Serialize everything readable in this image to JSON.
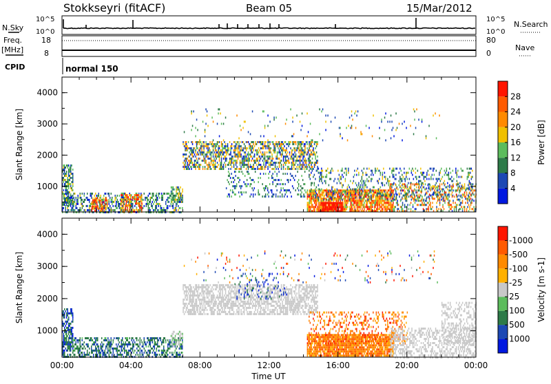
{
  "header": {
    "station": "Stokkseyri (fitACF)",
    "beam": "Beam 05",
    "date": "15/Mar/2012"
  },
  "side_labels": {
    "nsky": "N.Sky",
    "nsearch": "N.Search",
    "freq": "Freq.",
    "mhz": "[MHz]",
    "nave": "Nave",
    "cpid": "CPID"
  },
  "cpid_value": "normal 150",
  "strip_ticks": {
    "noise_top": "10^5",
    "noise_bottom": "10^0",
    "freq_top": "18",
    "freq_bottom": "8",
    "nave_top": "80",
    "nave_bottom": "0"
  },
  "chart_data": [
    {
      "type": "heatmap",
      "name": "power",
      "ylabel": "Slant Range [km]",
      "yticks": [
        "1000",
        "2000",
        "3000",
        "4000"
      ],
      "ylim": [
        180,
        4500
      ],
      "xlim": [
        0,
        24
      ],
      "colorbar_label": "Power [dB]",
      "colorbar_ticks": [
        "4",
        "8",
        "12",
        "16",
        "20",
        "24",
        "28"
      ],
      "colorbar_colors": [
        "#0018e0",
        "#1c48b4",
        "#2d7a48",
        "#5cbc5c",
        "#f0c000",
        "#ff8a00",
        "#ff5a00",
        "#ff1500"
      ],
      "regions": [
        {
          "t0": 0.0,
          "t1": 0.6,
          "r0": 400,
          "r1": 1700,
          "dens": 0.65,
          "lvl": [
            0.1,
            0.55
          ]
        },
        {
          "t0": 0.0,
          "t1": 7.0,
          "r0": 200,
          "r1": 800,
          "dens": 0.45,
          "lvl": [
            0.05,
            0.55
          ]
        },
        {
          "t0": 1.7,
          "t1": 2.6,
          "r0": 220,
          "r1": 650,
          "dens": 0.6,
          "lvl": [
            0.45,
            0.98
          ]
        },
        {
          "t0": 3.4,
          "t1": 4.6,
          "r0": 220,
          "r1": 750,
          "dens": 0.6,
          "lvl": [
            0.4,
            0.98
          ]
        },
        {
          "t0": 6.3,
          "t1": 7.0,
          "r0": 500,
          "r1": 1000,
          "dens": 0.55,
          "lvl": [
            0.2,
            0.6
          ]
        },
        {
          "t0": 7.0,
          "t1": 14.8,
          "r0": 1550,
          "r1": 2450,
          "dens": 0.55,
          "lvl": [
            0.05,
            0.75
          ]
        },
        {
          "t0": 9.5,
          "t1": 14.2,
          "r0": 700,
          "r1": 1500,
          "dens": 0.18,
          "lvl": [
            0.05,
            0.5
          ]
        },
        {
          "t0": 14.2,
          "t1": 19.2,
          "r0": 220,
          "r1": 900,
          "dens": 0.8,
          "lvl": [
            0.45,
            0.99
          ]
        },
        {
          "t0": 15.0,
          "t1": 16.3,
          "r0": 220,
          "r1": 500,
          "dens": 0.85,
          "lvl": [
            0.85,
            1.0
          ]
        },
        {
          "t0": 14.3,
          "t1": 23.8,
          "r0": 600,
          "r1": 1600,
          "dens": 0.25,
          "lvl": [
            0.05,
            0.6
          ]
        },
        {
          "t0": 19.0,
          "t1": 24.0,
          "r0": 200,
          "r1": 1100,
          "dens": 0.35,
          "lvl": [
            0.1,
            0.9
          ]
        },
        {
          "t0": 7.0,
          "t1": 22.0,
          "r0": 2500,
          "r1": 3500,
          "dens": 0.04,
          "lvl": [
            0.05,
            0.7
          ]
        }
      ]
    },
    {
      "type": "heatmap",
      "name": "velocity",
      "xlabel": "Time UT",
      "ylabel": "Slant Range [km]",
      "yticks": [
        "1000",
        "2000",
        "3000",
        "4000"
      ],
      "ylim": [
        180,
        4500
      ],
      "xlim": [
        0,
        24
      ],
      "xticks": [
        "00:00",
        "04:00",
        "08:00",
        "12:00",
        "16:00",
        "20:00",
        "00:00"
      ],
      "colorbar_label": "Velocity [m s-1]",
      "colorbar_ticks": [
        "1000",
        "500",
        "100",
        "25",
        "-25",
        "-100",
        "-500",
        "-1000"
      ],
      "colorbar_colors": [
        "#0018e0",
        "#1c48b4",
        "#2d7a48",
        "#5cbc5c",
        "#c8c8c8",
        "#ffb000",
        "#ff8a00",
        "#ff5a00",
        "#ff1500"
      ],
      "regions": [
        {
          "t0": 0.0,
          "t1": 0.6,
          "r0": 400,
          "r1": 1700,
          "dens": 0.6,
          "lvl": [
            0.0,
            0.35
          ]
        },
        {
          "t0": 0.0,
          "t1": 7.0,
          "r0": 200,
          "r1": 800,
          "dens": 0.5,
          "lvl": [
            0.15,
            0.35
          ]
        },
        {
          "t0": 6.3,
          "t1": 7.0,
          "r0": 500,
          "r1": 1000,
          "dens": 0.5,
          "lvl": [
            0.4,
            0.5
          ]
        },
        {
          "t0": 7.0,
          "t1": 14.8,
          "r0": 1550,
          "r1": 2450,
          "dens": 0.6,
          "lvl": [
            0.45,
            0.55
          ]
        },
        {
          "t0": 10.0,
          "t1": 13.0,
          "r0": 2000,
          "r1": 2800,
          "dens": 0.12,
          "lvl": [
            0.0,
            0.3
          ]
        },
        {
          "t0": 14.2,
          "t1": 19.2,
          "r0": 220,
          "r1": 900,
          "dens": 0.85,
          "lvl": [
            0.62,
            0.9
          ]
        },
        {
          "t0": 14.3,
          "t1": 20.0,
          "r0": 600,
          "r1": 1600,
          "dens": 0.25,
          "lvl": [
            0.6,
            0.95
          ]
        },
        {
          "t0": 19.0,
          "t1": 24.0,
          "r0": 200,
          "r1": 1100,
          "dens": 0.45,
          "lvl": [
            0.45,
            0.55
          ]
        },
        {
          "t0": 22.0,
          "t1": 24.0,
          "r0": 600,
          "r1": 1900,
          "dens": 0.35,
          "lvl": [
            0.47,
            0.53
          ]
        },
        {
          "t0": 7.0,
          "t1": 22.0,
          "r0": 2500,
          "r1": 3500,
          "dens": 0.04,
          "lvl": [
            0.0,
            1.0
          ]
        }
      ]
    }
  ]
}
